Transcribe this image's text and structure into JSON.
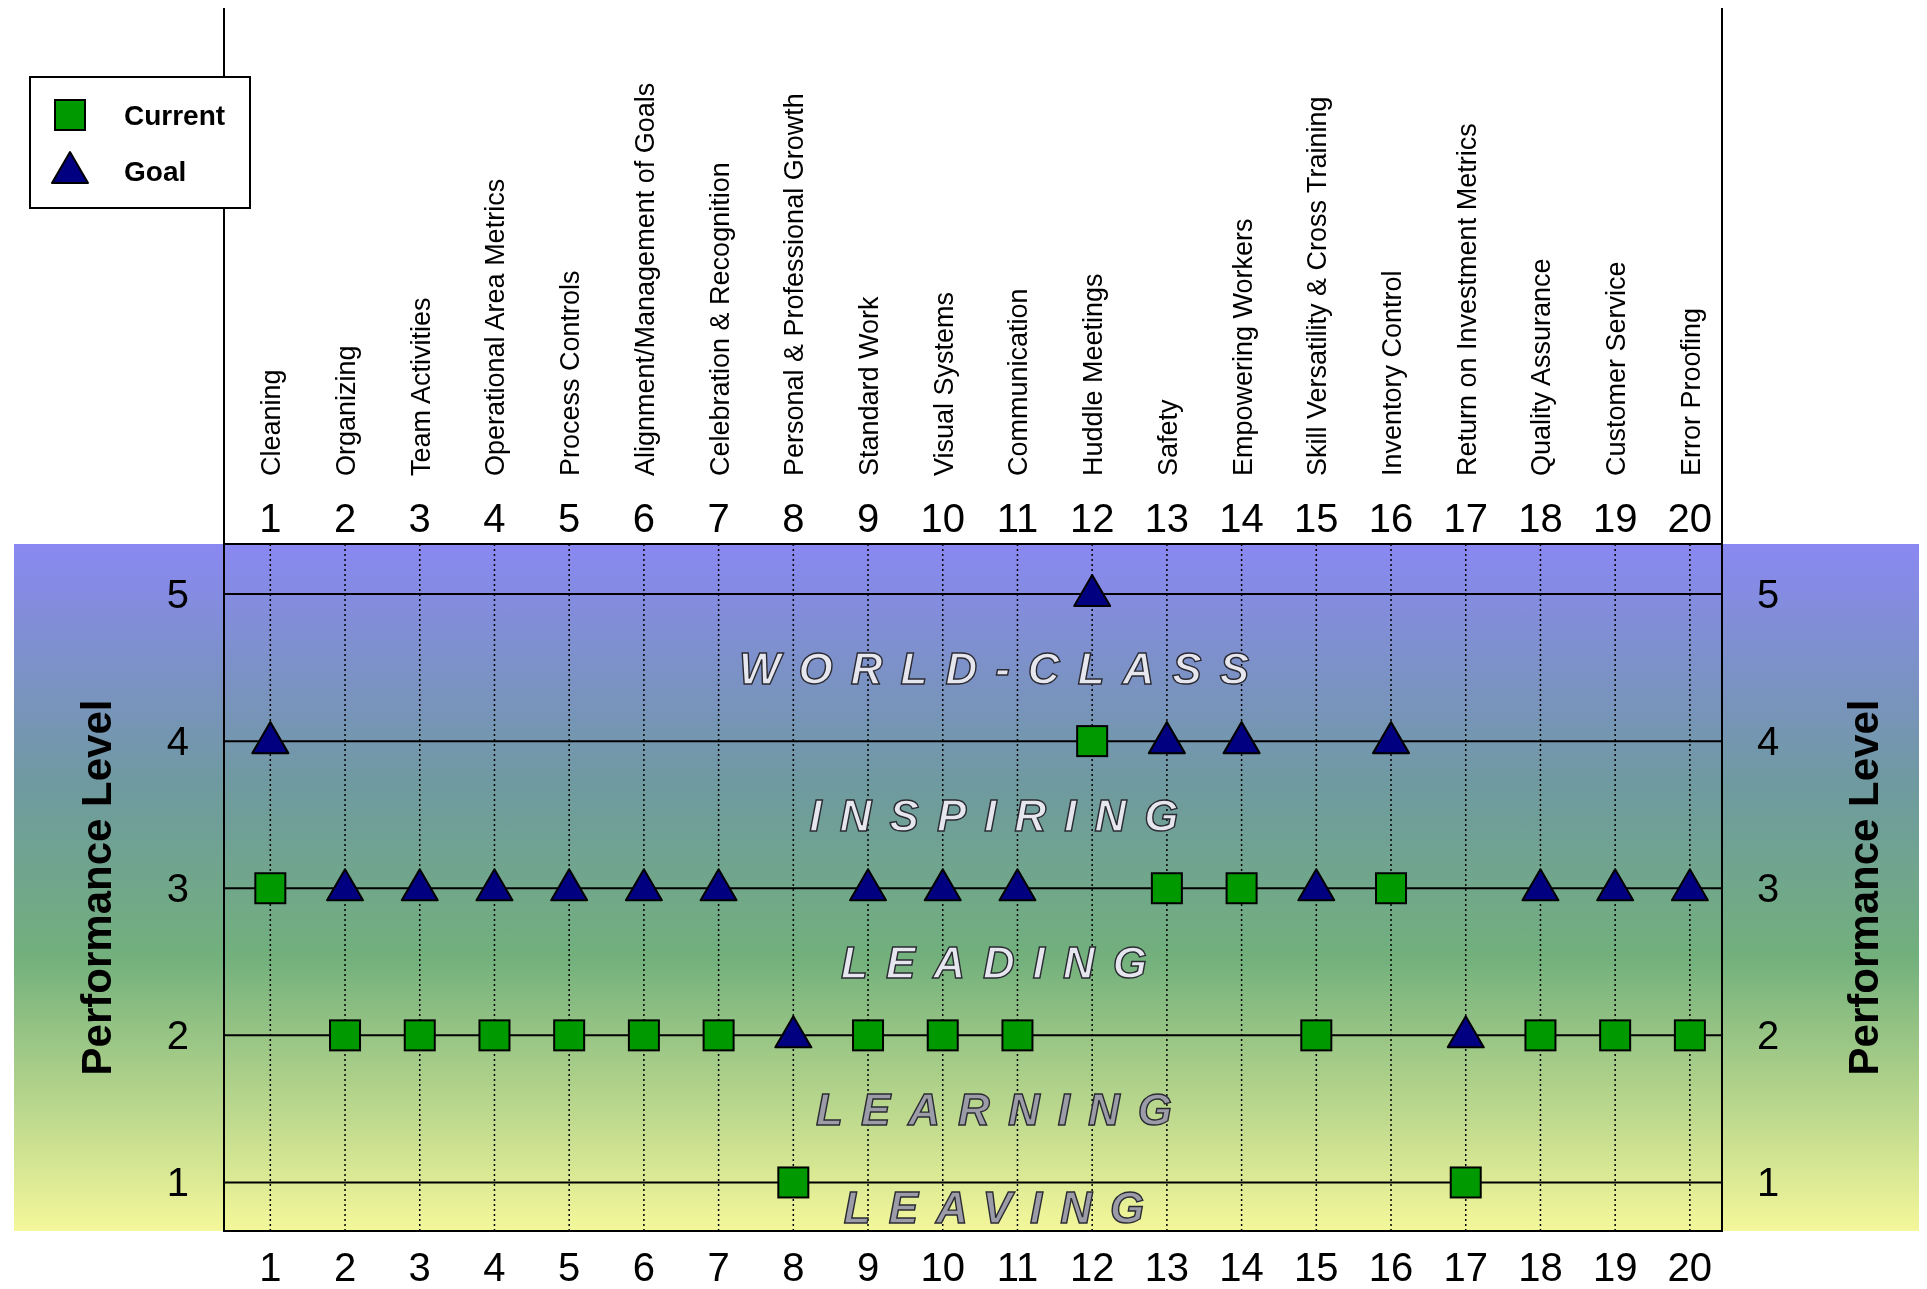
{
  "chart_data": {
    "type": "scatter",
    "ylabel": "Performance Level",
    "y2label": "Performance Level",
    "x": [
      1,
      2,
      3,
      4,
      5,
      6,
      7,
      8,
      9,
      10,
      11,
      12,
      13,
      14,
      15,
      16,
      17,
      18,
      19,
      20
    ],
    "xlim": [
      0.38,
      20.43
    ],
    "xticks": [
      1,
      2,
      3,
      4,
      5,
      6,
      7,
      8,
      9,
      10,
      11,
      12,
      13,
      14,
      15,
      16,
      17,
      18,
      19,
      20
    ],
    "x2lim": [
      0.38,
      20.43
    ],
    "x2ticks": [
      1,
      2,
      3,
      4,
      5,
      6,
      7,
      8,
      9,
      10,
      11,
      12,
      13,
      14,
      15,
      16,
      17,
      18,
      19,
      20
    ],
    "ylim": [
      0.67,
      5.34
    ],
    "yticks": [
      1,
      2,
      3,
      4,
      5
    ],
    "y2lim": [
      0.67,
      5.34
    ],
    "y2ticks": [
      1,
      2,
      3,
      4,
      5
    ],
    "grid": true,
    "legend": "top left",
    "annotations": [
      "WORLD-CLASS",
      "INSPIRING",
      "LEADING",
      "LEARNING",
      "LEAVING",
      "Cleaning",
      "Organizing",
      "Team Activities",
      "Operational Area Metrics",
      "Process Controls",
      "Alignment/Management of Goals",
      "Celebration & Recognition",
      "Personal & Professional Growth",
      "Standard Work",
      "Visual Systems",
      "Communication",
      "Huddle Meetings",
      "Safety",
      "Empowering Workers",
      "Skill Versatility & Cross Training",
      "Inventory Control",
      "Return on Investment Metrics",
      "Quality Assurance",
      "Customer Service",
      "Error Proofing"
    ],
    "series": [
      {
        "name": "Current",
        "color": "#009900",
        "marker": "square",
        "values": [
          3,
          2,
          2,
          2,
          2,
          2,
          2,
          1,
          2,
          2,
          2,
          4,
          3,
          3,
          2,
          3,
          1,
          2,
          2,
          2
        ]
      },
      {
        "name": "Goal",
        "color": "#000080",
        "marker": "triangle",
        "values": [
          4,
          3,
          3,
          3,
          3,
          3,
          3,
          2,
          3,
          3,
          3,
          5,
          4,
          4,
          3,
          4,
          2,
          3,
          3,
          3
        ]
      }
    ]
  }
}
